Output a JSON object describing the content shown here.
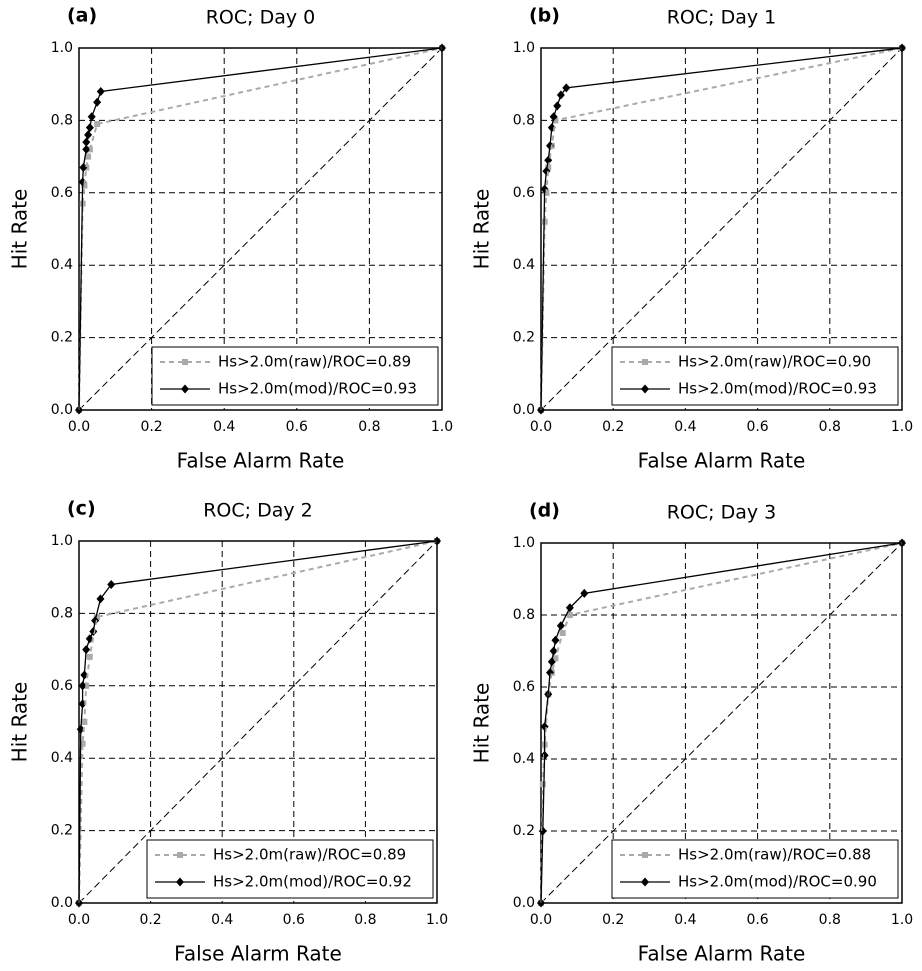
{
  "chart_data": [
    {
      "type": "line",
      "panel_label": "(a)",
      "title": "ROC; Day 0",
      "xlabel": "False Alarm Rate",
      "ylabel": "Hit Rate",
      "xlim": [
        0,
        1
      ],
      "ylim": [
        0,
        1
      ],
      "xticks": [
        {
          "value": 0,
          "label": "0.0"
        },
        0.2,
        0.4,
        0.6,
        0.8,
        {
          "value": 1,
          "label": "1.0"
        }
      ],
      "yticks": [
        {
          "value": 0,
          "label": "0.0"
        },
        0.2,
        0.4,
        0.6,
        0.8,
        {
          "value": 1,
          "label": "1.0"
        }
      ],
      "grid": true,
      "legend": "lower right",
      "series": [
        {
          "name": "Hs>2.0m(raw)/ROC=0.89",
          "color": "#aaaaaa",
          "linestyle": "dashed",
          "marker": "square",
          "x": [
            0,
            0.01,
            0.015,
            0.02,
            0.025,
            0.03,
            0.05,
            1
          ],
          "values": [
            0,
            0.57,
            0.62,
            0.67,
            0.7,
            0.72,
            0.79,
            1
          ]
        },
        {
          "name": "Hs>2.0m(mod)/ROC=0.93",
          "color": "#000000",
          "linestyle": "solid",
          "marker": "diamond",
          "x": [
            0,
            0.01,
            0.012,
            0.02,
            0.02,
            0.025,
            0.03,
            0.035,
            0.05,
            0.06,
            1
          ],
          "values": [
            0,
            0.63,
            0.67,
            0.72,
            0.74,
            0.76,
            0.78,
            0.81,
            0.85,
            0.88,
            1
          ]
        }
      ]
    },
    {
      "type": "line",
      "panel_label": "(b)",
      "title": "ROC; Day 1",
      "xlabel": "False Alarm Rate",
      "ylabel": "Hit Rate",
      "xlim": [
        0,
        1
      ],
      "ylim": [
        0,
        1
      ],
      "xticks": [
        {
          "value": 0,
          "label": "0.0"
        },
        0.2,
        0.4,
        0.6,
        0.8,
        {
          "value": 1,
          "label": "1.0"
        }
      ],
      "yticks": [
        {
          "value": 0,
          "label": "0.0"
        },
        0.2,
        0.4,
        0.6,
        0.8,
        {
          "value": 1,
          "label": "1.0"
        }
      ],
      "grid": true,
      "legend": "lower right",
      "series": [
        {
          "name": "Hs>2.0m(raw)/ROC=0.90",
          "color": "#aaaaaa",
          "linestyle": "dashed",
          "marker": "square",
          "x": [
            0,
            0.01,
            0.015,
            0.02,
            0.03,
            0.04,
            1
          ],
          "values": [
            0,
            0.52,
            0.6,
            0.67,
            0.73,
            0.8,
            1
          ]
        },
        {
          "name": "Hs>2.0m(mod)/ROC=0.93",
          "color": "#000000",
          "linestyle": "solid",
          "marker": "diamond",
          "x": [
            0,
            0.01,
            0.015,
            0.02,
            0.025,
            0.03,
            0.035,
            0.045,
            0.055,
            0.07,
            1
          ],
          "values": [
            0,
            0.61,
            0.66,
            0.69,
            0.73,
            0.78,
            0.81,
            0.84,
            0.87,
            0.89,
            1
          ]
        }
      ]
    },
    {
      "type": "line",
      "panel_label": "(c)",
      "title": "ROC; Day 2",
      "xlabel": "False Alarm Rate",
      "ylabel": "Hit Rate",
      "xlim": [
        0,
        1
      ],
      "ylim": [
        0,
        1
      ],
      "xticks": [
        {
          "value": 0,
          "label": "0.0"
        },
        0.2,
        0.4,
        0.6,
        0.8,
        {
          "value": 1,
          "label": "1.0"
        }
      ],
      "yticks": [
        {
          "value": 0,
          "label": "0.0"
        },
        0.2,
        0.4,
        0.6,
        0.8,
        {
          "value": 1,
          "label": "1.0"
        }
      ],
      "grid": true,
      "legend": "lower right",
      "series": [
        {
          "name": "Hs>2.0m(raw)/ROC=0.89",
          "color": "#aaaaaa",
          "linestyle": "dashed",
          "marker": "square",
          "x": [
            0,
            0.01,
            0.015,
            0.02,
            0.03,
            0.05,
            1
          ],
          "values": [
            0,
            0.44,
            0.5,
            0.6,
            0.68,
            0.79,
            1
          ]
        },
        {
          "name": "Hs>2.0m(mod)/ROC=0.92",
          "color": "#000000",
          "linestyle": "solid",
          "marker": "diamond",
          "x": [
            0,
            0.005,
            0.01,
            0.01,
            0.015,
            0.02,
            0.03,
            0.04,
            0.045,
            0.06,
            0.09,
            1
          ],
          "values": [
            0,
            0.48,
            0.55,
            0.6,
            0.63,
            0.7,
            0.73,
            0.75,
            0.78,
            0.84,
            0.88,
            1
          ]
        }
      ]
    },
    {
      "type": "line",
      "panel_label": "(d)",
      "title": "ROC; Day 3",
      "xlabel": "False Alarm Rate",
      "ylabel": "Hit Rate",
      "xlim": [
        0,
        1
      ],
      "ylim": [
        0,
        1
      ],
      "xticks": [
        {
          "value": 0,
          "label": "0.0"
        },
        0.2,
        0.4,
        0.6,
        0.8,
        {
          "value": 1,
          "label": "1.0"
        }
      ],
      "yticks": [
        {
          "value": 0,
          "label": "0.0"
        },
        0.2,
        0.4,
        0.6,
        0.8,
        {
          "value": 1,
          "label": "1.0"
        }
      ],
      "grid": true,
      "legend": "lower right",
      "series": [
        {
          "name": "Hs>2.0m(raw)/ROC=0.88",
          "color": "#aaaaaa",
          "linestyle": "dashed",
          "marker": "square",
          "x": [
            0,
            0.005,
            0.01,
            0.02,
            0.03,
            0.04,
            0.06,
            0.08,
            1
          ],
          "values": [
            0,
            0.33,
            0.44,
            0.58,
            0.64,
            0.68,
            0.75,
            0.8,
            1
          ]
        },
        {
          "name": "Hs>2.0m(mod)/ROC=0.90",
          "color": "#000000",
          "linestyle": "solid",
          "marker": "diamond",
          "x": [
            0,
            0.005,
            0.01,
            0.01,
            0.02,
            0.025,
            0.03,
            0.035,
            0.04,
            0.055,
            0.08,
            0.12,
            1
          ],
          "values": [
            0,
            0.2,
            0.41,
            0.49,
            0.58,
            0.64,
            0.67,
            0.7,
            0.73,
            0.77,
            0.82,
            0.86,
            1
          ]
        }
      ]
    }
  ]
}
